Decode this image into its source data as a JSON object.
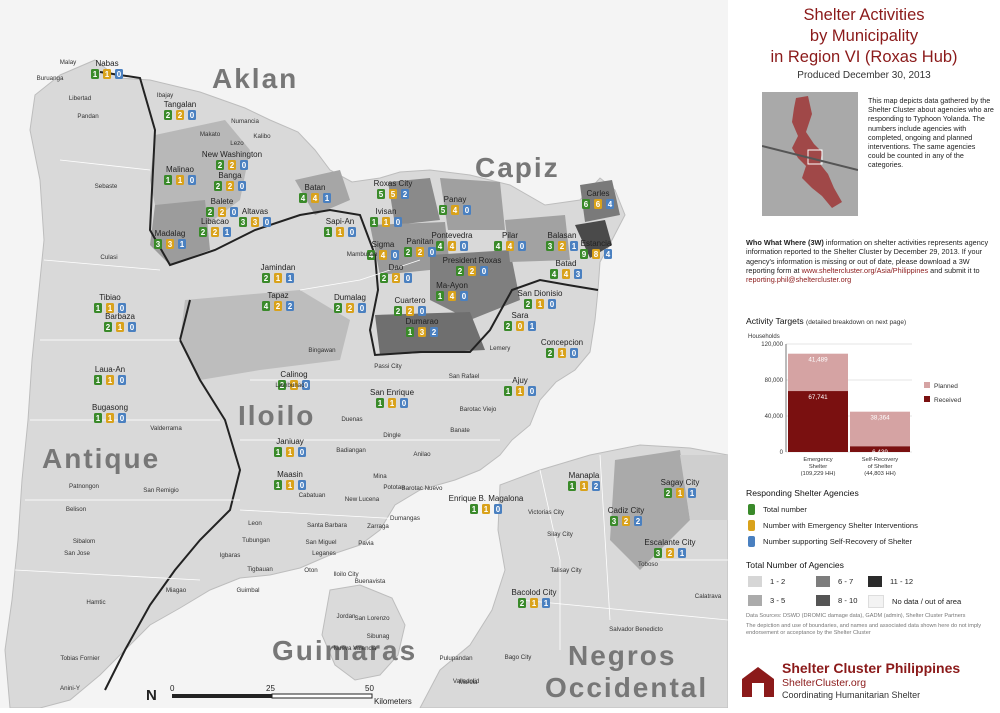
{
  "title": [
    "Shelter Activities",
    "by Municipality",
    "in Region VI (Roxas Hub)"
  ],
  "produced": "Produced December 30, 2013",
  "description": "This map depicts data gathered by the Shelter Cluster about agencies who are responding to Typhoon Yolanda. The numbers include agencies with completed, ongoing and planned interventions. The same agencies could be counted in any of the categories.",
  "three_w": {
    "lead": "Who What Where (3W)",
    "text": " information on shelter activities represents agency information reported to the Shelter Cluster by December 29, 2013. If your agency's information is missing or out of date, please download a 3W reporting form at ",
    "url": "www.sheltercluster.org/Asia/Philippines",
    "mid": " and submit it to ",
    "email": "reporting.phil@sheltercluster.org"
  },
  "activity_targets": {
    "heading": "Activity Targets",
    "note": "(detailed breakdown on next page)",
    "unit_label": "Households",
    "legend": [
      "Planned",
      "Received"
    ]
  },
  "chart_data": {
    "type": "bar",
    "stacked": true,
    "categories": [
      "Emergency Shelter (109,229 HH)",
      "Self-Recovery of Shelter (44,803 HH)"
    ],
    "category_lines": [
      [
        "Emergency",
        "Shelter",
        "(109,229 HH)"
      ],
      [
        "Self-Recovery",
        "of Shelter",
        "(44,803 HH)"
      ]
    ],
    "series": [
      {
        "name": "Received",
        "values": [
          67741,
          6439
        ],
        "labels": [
          "67,741",
          "6,439"
        ],
        "color": "#7a1010"
      },
      {
        "name": "Planned",
        "values": [
          41489,
          38364
        ],
        "labels": [
          "41,489",
          "38,364"
        ],
        "color": "#d5a3a3"
      }
    ],
    "ylim": [
      0,
      120000
    ],
    "yticks": [
      0,
      40000,
      80000,
      120000
    ],
    "ytick_labels": [
      "0",
      "40,000",
      "80,000",
      "120,000"
    ],
    "ylabel": "Households",
    "grid": true,
    "legend_position": "right"
  },
  "responding": {
    "heading": "Responding Shelter Agencies",
    "items": [
      {
        "label": "Total number",
        "color": "#3a8a2a",
        "icon": "green-house-icon"
      },
      {
        "label": "Number with Emergency Shelter Interventions",
        "color": "#d9a21b",
        "icon": "orange-house-icon"
      },
      {
        "label": "Number supporting Self-Recovery of Shelter",
        "color": "#4a80c0",
        "icon": "blue-house-icon"
      }
    ]
  },
  "total_agencies": {
    "heading": "Total Number of Agencies",
    "classes": [
      {
        "label": "1 - 2",
        "color": "#d6d6d6"
      },
      {
        "label": "6 - 7",
        "color": "#7d7d7d"
      },
      {
        "label": "11 - 12",
        "color": "#2b2b2b"
      },
      {
        "label": "3 - 5",
        "color": "#ababab"
      },
      {
        "label": "8 - 10",
        "color": "#555555"
      },
      {
        "label": "No data / out of area",
        "color": "#f3f3f3"
      }
    ]
  },
  "sources": "Data Sources: DSWD (DROMIC damage data), GADM (admin), Shelter Cluster Partners",
  "disclaimer": "The depiction and use of boundaries, and names and associated data shown here do not imply endorsement or acceptance by the Shelter Cluster",
  "brand": {
    "name": "Shelter Cluster Philippines",
    "site": "ShelterCluster.org",
    "tagline": "Coordinating Humanitarian Shelter"
  },
  "map": {
    "provinces": [
      "Aklan",
      "Capiz",
      "Iloilo",
      "Antique",
      "Guimaras",
      "Negros",
      "Occidental"
    ],
    "municipalities": [
      {
        "name": "Nabas",
        "counts": [
          "1",
          "1",
          "0"
        ]
      },
      {
        "name": "Tangalan",
        "counts": [
          "2",
          "2",
          "0"
        ]
      },
      {
        "name": "New Washington",
        "counts": [
          "2",
          "2",
          "0"
        ]
      },
      {
        "name": "Malinao",
        "counts": [
          "1",
          "1",
          "0"
        ]
      },
      {
        "name": "Banga",
        "counts": [
          "2",
          "2",
          "0"
        ]
      },
      {
        "name": "Balete",
        "counts": [
          "2",
          "2",
          "0"
        ]
      },
      {
        "name": "Batan",
        "counts": [
          "4",
          "4",
          "1"
        ]
      },
      {
        "name": "Altavas",
        "counts": [
          "3",
          "3",
          "0"
        ]
      },
      {
        "name": "Madalag",
        "counts": [
          "3",
          "3",
          "1"
        ]
      },
      {
        "name": "Libacao",
        "counts": [
          "2",
          "2",
          "1"
        ]
      },
      {
        "name": "Sapi-An",
        "counts": [
          "1",
          "1",
          "0"
        ]
      },
      {
        "name": "Roxas City",
        "counts": [
          "5",
          "5",
          "2"
        ]
      },
      {
        "name": "Ivisan",
        "counts": [
          "1",
          "1",
          "0"
        ]
      },
      {
        "name": "Panay",
        "counts": [
          "5",
          "4",
          "0"
        ]
      },
      {
        "name": "Sigma",
        "counts": [
          "4",
          "4",
          "0"
        ]
      },
      {
        "name": "Panitan",
        "counts": [
          "2",
          "2",
          "0"
        ]
      },
      {
        "name": "Pontevedra",
        "counts": [
          "4",
          "4",
          "0"
        ]
      },
      {
        "name": "Pilar",
        "counts": [
          "4",
          "4",
          "0"
        ]
      },
      {
        "name": "Carles",
        "counts": [
          "6",
          "6",
          "4"
        ]
      },
      {
        "name": "Balasan",
        "counts": [
          "3",
          "2",
          "1"
        ]
      },
      {
        "name": "Estancia",
        "counts": [
          "9",
          "8",
          "4"
        ]
      },
      {
        "name": "Batad",
        "counts": [
          "4",
          "4",
          "3"
        ]
      },
      {
        "name": "President Roxas",
        "counts": [
          "2",
          "2",
          "0"
        ]
      },
      {
        "name": "Dao",
        "counts": [
          "2",
          "2",
          "0"
        ]
      },
      {
        "name": "Jamindan",
        "counts": [
          "2",
          "1",
          "1"
        ]
      },
      {
        "name": "Ma-Ayon",
        "counts": [
          "1",
          "4",
          "0"
        ]
      },
      {
        "name": "Tibiao",
        "counts": [
          "1",
          "1",
          "0"
        ]
      },
      {
        "name": "Barbaza",
        "counts": [
          "2",
          "1",
          "0"
        ]
      },
      {
        "name": "Dumalag",
        "counts": [
          "2",
          "2",
          "0"
        ]
      },
      {
        "name": "Cuartero",
        "counts": [
          "2",
          "2",
          "0"
        ]
      },
      {
        "name": "San Dionisio",
        "counts": [
          "2",
          "1",
          "0"
        ]
      },
      {
        "name": "Sara",
        "counts": [
          "2",
          "0",
          "1"
        ]
      },
      {
        "name": "Tapaz",
        "counts": [
          "4",
          "2",
          "2"
        ]
      },
      {
        "name": "Dumarao",
        "counts": [
          "1",
          "3",
          "2"
        ]
      },
      {
        "name": "Concepcion",
        "counts": [
          "2",
          "1",
          "0"
        ]
      },
      {
        "name": "Laua-An",
        "counts": [
          "1",
          "1",
          "0"
        ]
      },
      {
        "name": "Calinog",
        "counts": [
          "2",
          "1",
          "0"
        ]
      },
      {
        "name": "Ajuy",
        "counts": [
          "1",
          "1",
          "0"
        ]
      },
      {
        "name": "Bugasong",
        "counts": [
          "1",
          "1",
          "0"
        ]
      },
      {
        "name": "San Enrique",
        "counts": [
          "1",
          "1",
          "0"
        ]
      },
      {
        "name": "Janiuay",
        "counts": [
          "1",
          "1",
          "0"
        ]
      },
      {
        "name": "Maasin",
        "counts": [
          "1",
          "1",
          "0"
        ]
      },
      {
        "name": "Manapla",
        "counts": [
          "1",
          "1",
          "2"
        ]
      },
      {
        "name": "Sagay City",
        "counts": [
          "2",
          "1",
          "1"
        ]
      },
      {
        "name": "Enrique B. Magalona",
        "counts": [
          "1",
          "1",
          "0"
        ]
      },
      {
        "name": "Cadiz City",
        "counts": [
          "3",
          "2",
          "2"
        ]
      },
      {
        "name": "Escalante City",
        "counts": [
          "3",
          "2",
          "1"
        ]
      },
      {
        "name": "Bacolod City",
        "counts": [
          "2",
          "1",
          "1"
        ]
      }
    ],
    "places": [
      "Malay",
      "Buruanga",
      "Libertad",
      "Pandan",
      "Ibajay",
      "Numancia",
      "Makato",
      "Kalibo",
      "Lezo",
      "Sebaste",
      "Culasi",
      "Mambusao",
      "Bingawan",
      "Lambunao",
      "Passi City",
      "San Rafael",
      "Lemery",
      "Barotac Viejo",
      "Duenas",
      "Dingle",
      "Banate",
      "Badiangan",
      "Anilao",
      "Mina",
      "Pototan",
      "Barotac Nuevo",
      "Cabatuan",
      "New Lucena",
      "Dumangas",
      "Leon",
      "Santa Barbara",
      "Zarraga",
      "Tubungan",
      "San Miguel",
      "Pavia",
      "Leganes",
      "Igbaras",
      "Tigbauan",
      "Oton",
      "Iloilo City",
      "Miagao",
      "Guimbal",
      "Buenavista",
      "Jordan",
      "San Lorenzo",
      "Sibunag",
      "Nueva Valencia",
      "Hamtic",
      "San Jose",
      "Sibalom",
      "Belison",
      "Patnongon",
      "San Remigio",
      "Valderrama",
      "Tobias Fornier",
      "Anini-Y",
      "Victorias City",
      "Silay City",
      "Talisay City",
      "Toboso",
      "Calatrava",
      "Salvador Benedicto",
      "Pulupandan",
      "Bago City",
      "Valladolid",
      "Murcia"
    ],
    "scale": {
      "ticks": [
        "0",
        "25",
        "50"
      ],
      "unit": "Kilometers",
      "north": "N"
    }
  }
}
